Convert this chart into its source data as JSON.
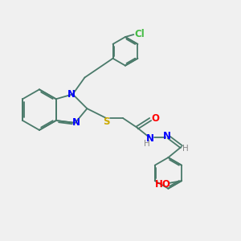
{
  "bg_color": "#f0f0f0",
  "bond_color": "#4a7a6a",
  "N_color": "#0000ff",
  "O_color": "#ff0000",
  "S_color": "#ccaa00",
  "Cl_color": "#44bb44",
  "H_color": "#888888",
  "lw": 1.3,
  "fs": 8.5,
  "xlim": [
    0,
    10
  ],
  "ylim": [
    0,
    10
  ]
}
